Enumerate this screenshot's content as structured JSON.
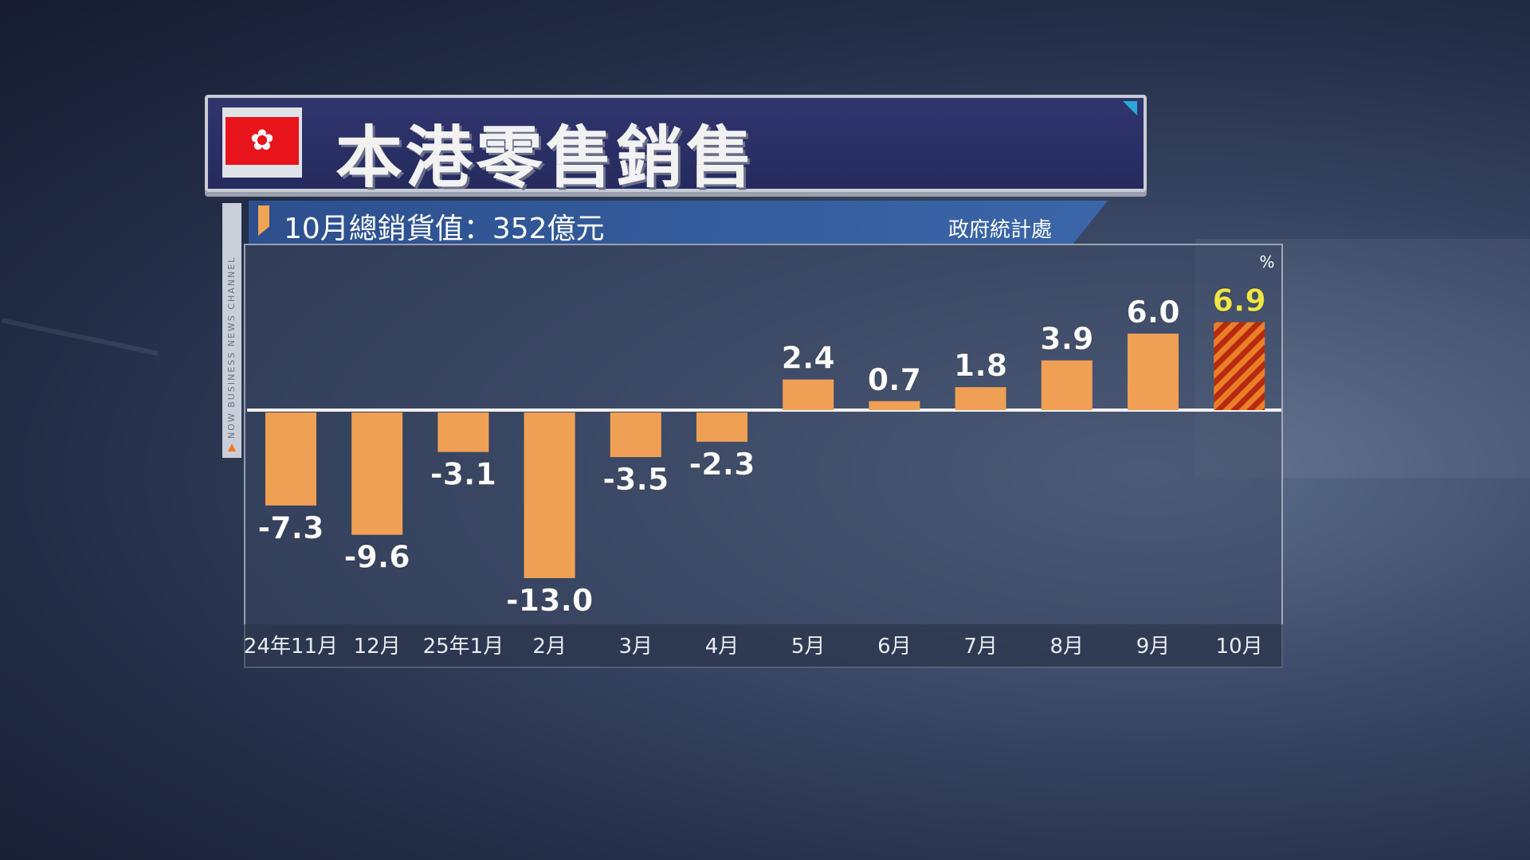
{
  "title": "本港零售銷售",
  "subtitle": "10月總銷貨值：352億元",
  "source": "政府統計處",
  "channel": "NOW BUSINESS NEWS CHANNEL",
  "colors": {
    "bar": "#f0a055",
    "highlight_stripe_1": "#b82a10",
    "highlight_stripe_2": "#e8802a",
    "highlight_label": "#f0e64a",
    "label": "#ffffff"
  },
  "chart_data": {
    "type": "bar",
    "title": "本港零售銷售",
    "unit": "%",
    "categories": [
      "24年11月",
      "12月",
      "25年1月",
      "2月",
      "3月",
      "4月",
      "5月",
      "6月",
      "7月",
      "8月",
      "9月",
      "10月"
    ],
    "values": [
      -7.3,
      -9.6,
      -3.1,
      -13.0,
      -3.5,
      -2.3,
      2.4,
      0.7,
      1.8,
      3.9,
      6.0,
      6.9
    ],
    "labels": [
      "-7.3",
      "-9.6",
      "-3.1",
      "-13.0",
      "-3.5",
      "-2.3",
      "2.4",
      "0.7",
      "1.8",
      "3.9",
      "6.0",
      "6.9"
    ],
    "highlight_index": 11,
    "grid": false
  }
}
